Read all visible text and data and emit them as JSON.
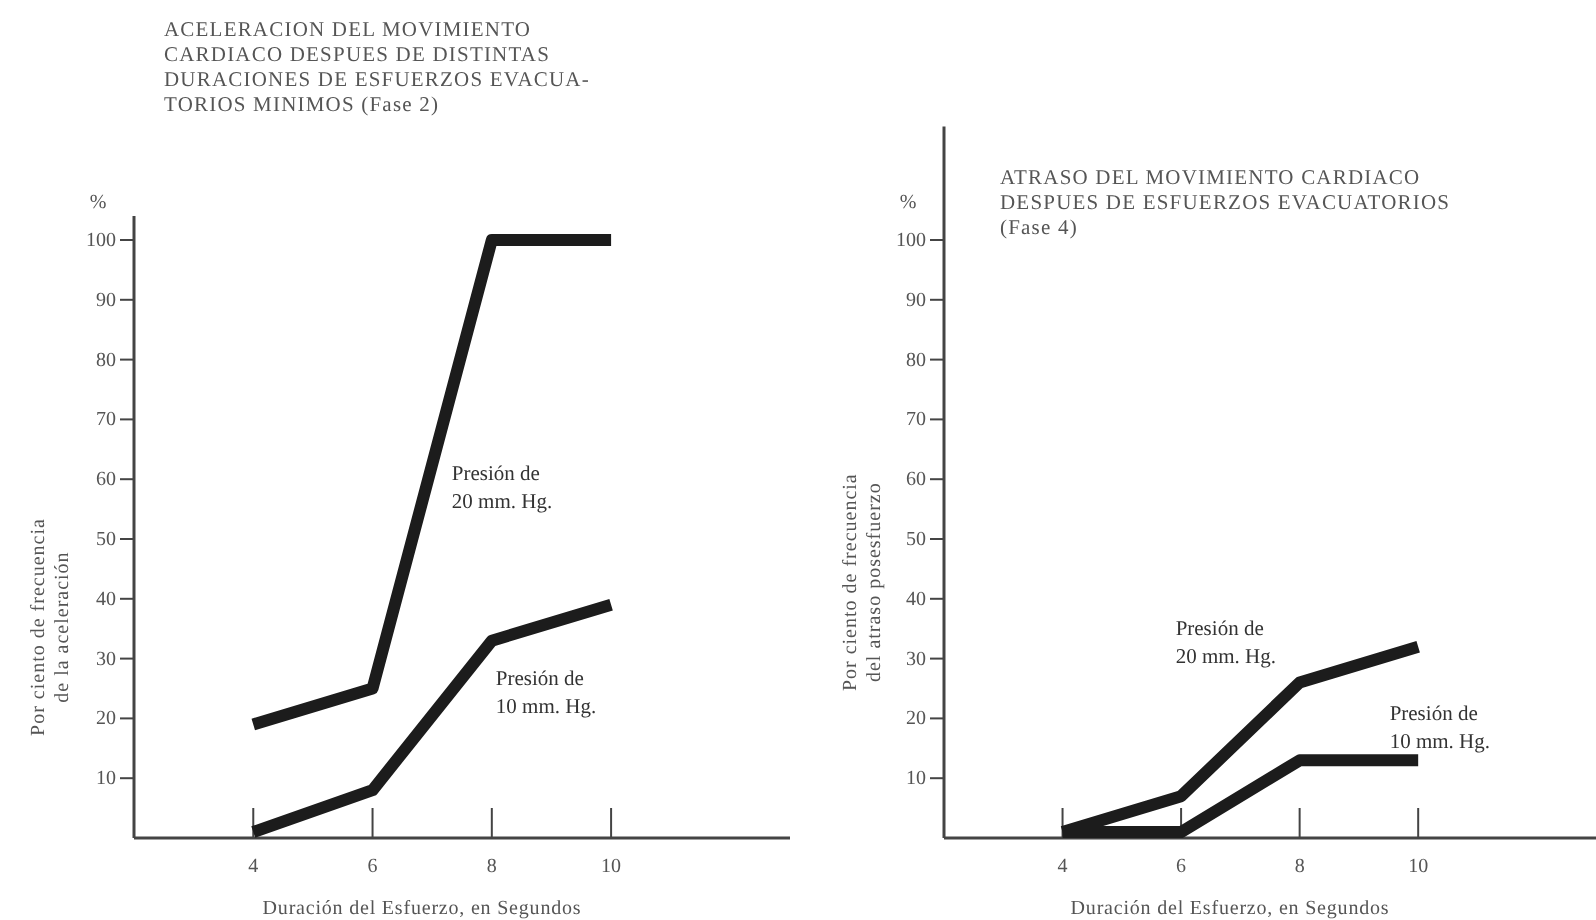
{
  "chart_data": [
    {
      "type": "line",
      "title": "ACELERACION DEL MOVIMIENTO\nCARDIACO DESPUES DE DISTINTAS\nDURACIONES DE ESFUERZOS EVACUA-\nTORIOS MINIMOS (Fase 2)",
      "xlabel": "Duración del Esfuerzo, en Segundos",
      "ylabel": "Por ciento de frecuencia\nde la aceleración",
      "annotations": [
        "%"
      ],
      "x": [
        4,
        6,
        8,
        10
      ],
      "xlim": [
        2,
        13
      ],
      "ylim": [
        0,
        104
      ],
      "xticks": [
        4,
        6,
        8,
        10
      ],
      "yticks": [
        10,
        20,
        30,
        40,
        50,
        60,
        70,
        80,
        90,
        100
      ],
      "series": [
        {
          "name": "Presión de\n20 mm. Hg.",
          "color": "#1c1c1c",
          "values": [
            19,
            25,
            100,
            100
          ]
        },
        {
          "name": "Presión de\n10 mm. Hg.",
          "color": "#1c1c1c",
          "values": [
            1,
            8,
            33,
            39
          ]
        }
      ]
    },
    {
      "type": "line",
      "title": "ATRASO DEL MOVIMIENTO CARDIACO\nDESPUES DE ESFUERZOS EVACUATORIOS\n(Fase 4)",
      "xlabel": "Duración del Esfuerzo, en Segundos",
      "ylabel": "Por ciento de frecuencia\ndel atraso posesfuerzo",
      "annotations": [
        "%"
      ],
      "x": [
        4,
        6,
        8,
        10
      ],
      "xlim": [
        2,
        13
      ],
      "ylim": [
        0,
        119
      ],
      "xticks": [
        4,
        6,
        8,
        10
      ],
      "yticks": [
        10,
        20,
        30,
        40,
        50,
        60,
        70,
        80,
        90,
        100
      ],
      "series": [
        {
          "name": "Presión de\n20 mm. Hg.",
          "color": "#1c1c1c",
          "values": [
            1,
            7,
            26,
            32
          ]
        },
        {
          "name": "Presión de\n10 mm. Hg.",
          "color": "#1c1c1c",
          "values": [
            1,
            1,
            13,
            13
          ]
        }
      ]
    }
  ]
}
